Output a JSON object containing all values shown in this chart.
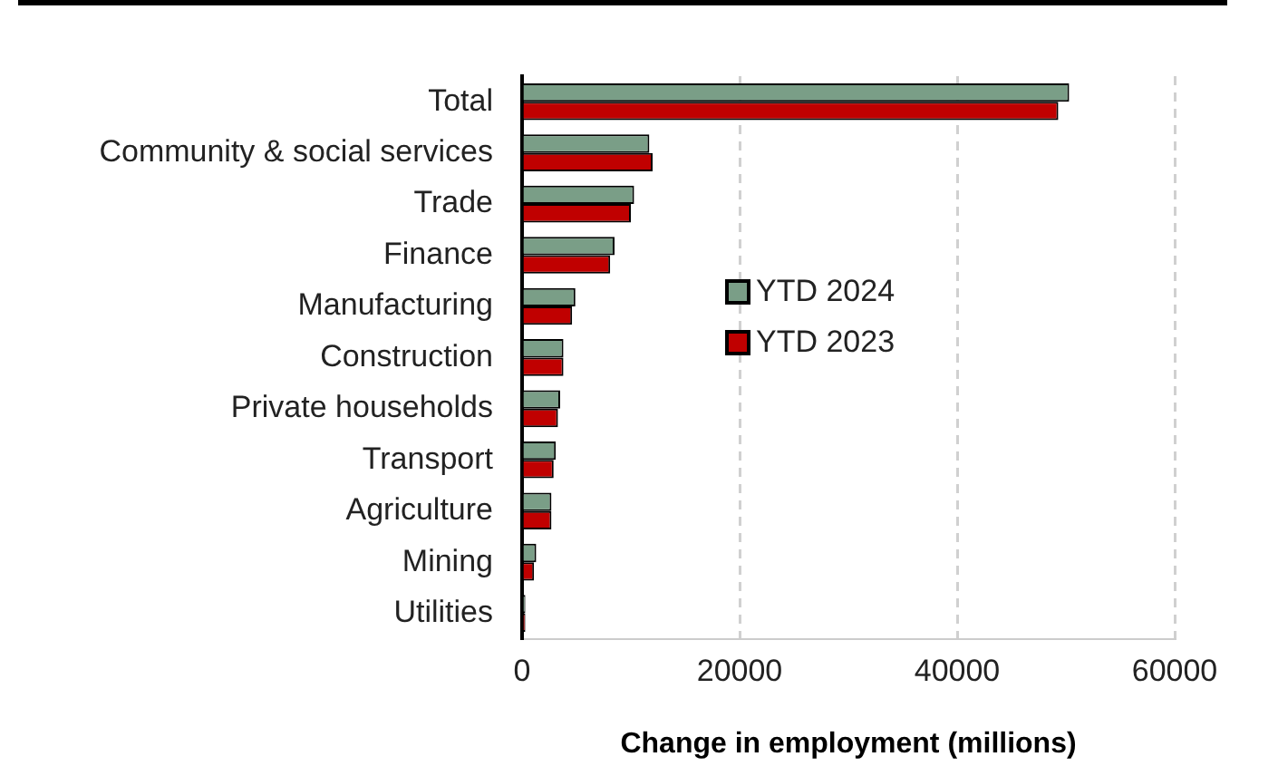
{
  "chart_data": {
    "type": "bar",
    "orientation": "horizontal",
    "xlabel": "Change in employment (millions)",
    "categories": [
      "Total",
      "Community & social services",
      "Trade",
      "Finance",
      "Manufacturing",
      "Construction",
      "Private households",
      "Transport",
      "Agriculture",
      "Mining",
      "Utilities"
    ],
    "series": [
      {
        "name": "YTD 2024",
        "color": "#7a9e87",
        "values": [
          50300,
          11700,
          10300,
          8500,
          4900,
          3800,
          3500,
          3100,
          2700,
          1300,
          300
        ]
      },
      {
        "name": "YTD 2023",
        "color": "#c00000",
        "values": [
          49300,
          12000,
          10000,
          8100,
          4600,
          3800,
          3300,
          2900,
          2700,
          1100,
          300
        ]
      }
    ],
    "xlim": [
      0,
      60000
    ],
    "xticks": [
      0,
      20000,
      40000,
      60000
    ],
    "grid": "x",
    "legend": "center"
  }
}
